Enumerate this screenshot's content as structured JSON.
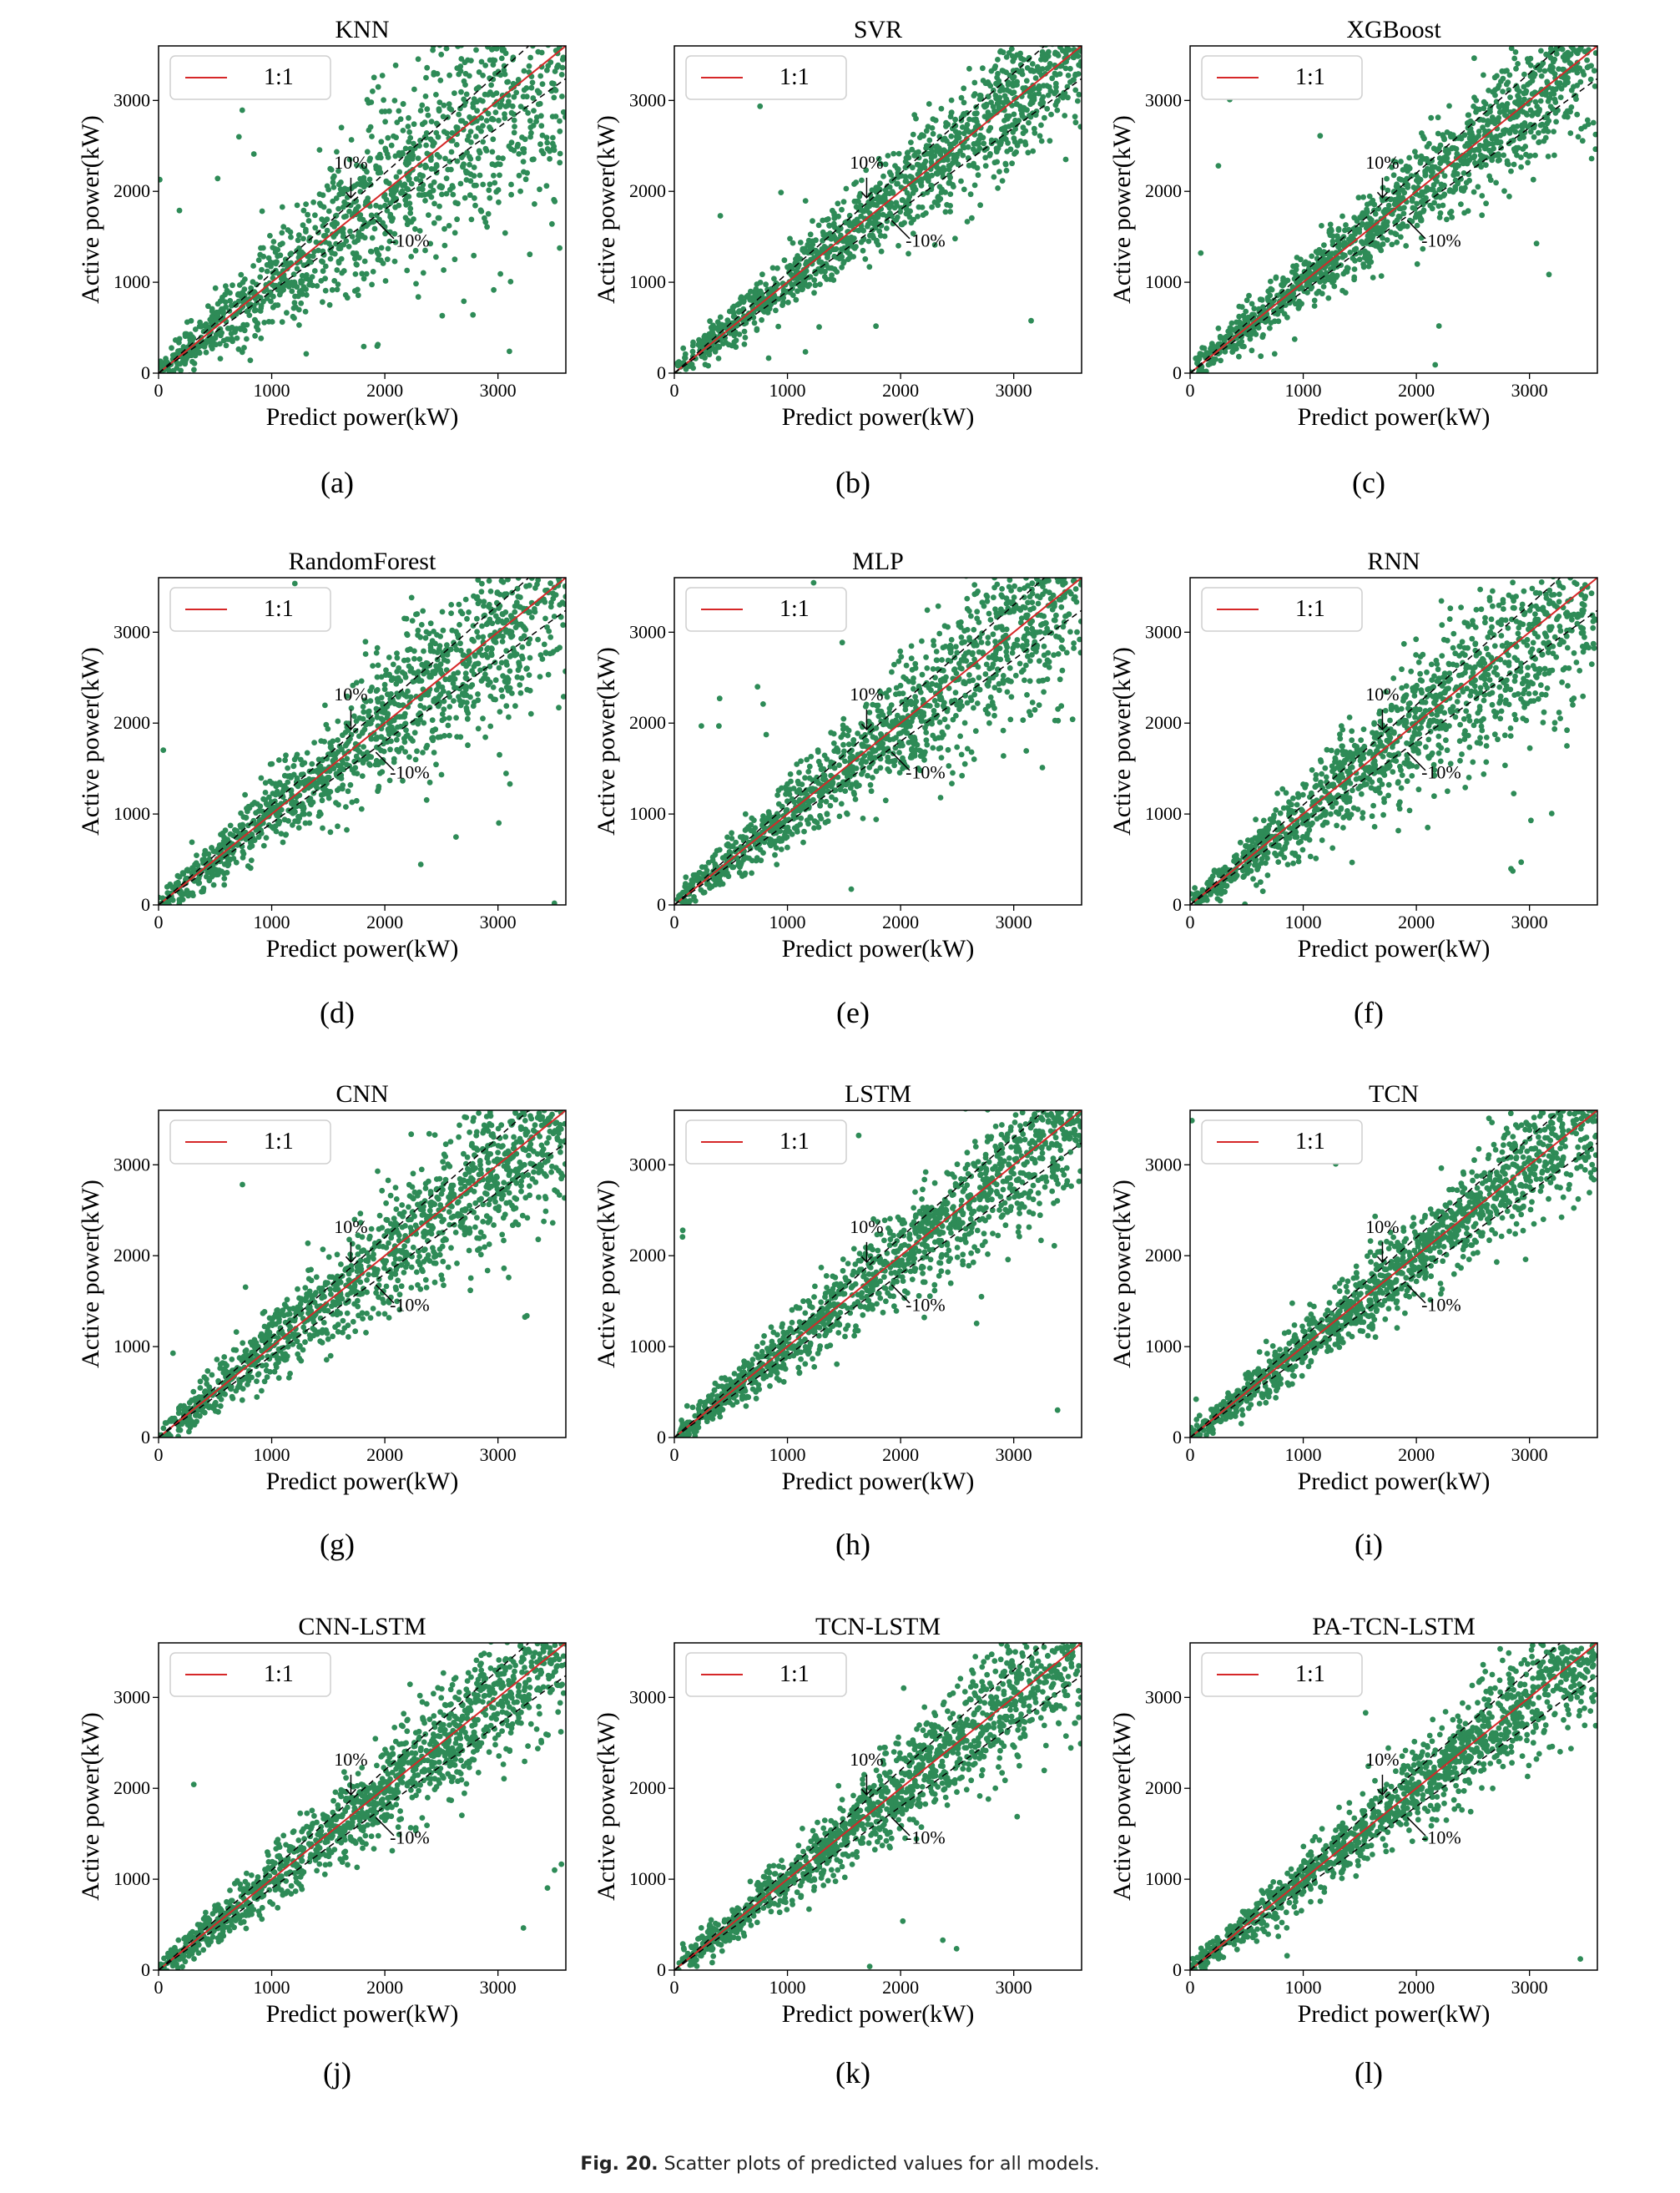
{
  "figure": {
    "caption_label": "Fig. 20.",
    "caption_text": "Scatter plots of predicted values for all models."
  },
  "colors": {
    "points": "#2e8b57",
    "line_1to1": "#d62728",
    "bounds": "#000000"
  },
  "chart_data": [
    {
      "type": "scatter",
      "title": "KNN",
      "sublabel": "(a)",
      "xlabel": "Predict power(kW)",
      "ylabel": "Active power(kW)",
      "xlim": [
        0,
        3600
      ],
      "ylim": [
        0,
        3600
      ],
      "xticks": [
        0,
        1000,
        2000,
        3000
      ],
      "yticks": [
        0,
        1000,
        2000,
        3000
      ],
      "legend": {
        "label": "1:1",
        "placement": "top-left"
      },
      "lines": [
        {
          "name": "1:1",
          "slope": 1.0
        },
        {
          "name": "+10%",
          "slope": 1.1
        },
        {
          "name": "-10%",
          "slope": 0.9
        }
      ],
      "annotations": [
        "10%",
        "-10%"
      ],
      "spread": 0.22,
      "outliers": 40
    },
    {
      "type": "scatter",
      "title": "SVR",
      "sublabel": "(b)",
      "xlabel": "Predict power(kW)",
      "ylabel": "Active power(kW)",
      "xlim": [
        0,
        3600
      ],
      "ylim": [
        0,
        3600
      ],
      "xticks": [
        0,
        1000,
        2000,
        3000
      ],
      "yticks": [
        0,
        1000,
        2000,
        3000
      ],
      "legend": {
        "label": "1:1",
        "placement": "top-left"
      },
      "lines": [
        {
          "name": "1:1",
          "slope": 1.0
        },
        {
          "name": "+10%",
          "slope": 1.1
        },
        {
          "name": "-10%",
          "slope": 0.9
        }
      ],
      "annotations": [
        "10%",
        "-10%"
      ],
      "spread": 0.1,
      "outliers": 10
    },
    {
      "type": "scatter",
      "title": "XGBoost",
      "sublabel": "(c)",
      "xlabel": "Predict power(kW)",
      "ylabel": "Active power(kW)",
      "xlim": [
        0,
        3600
      ],
      "ylim": [
        0,
        3600
      ],
      "xticks": [
        0,
        1000,
        2000,
        3000
      ],
      "yticks": [
        0,
        1000,
        2000,
        3000
      ],
      "legend": {
        "label": "1:1",
        "placement": "top-left"
      },
      "lines": [
        {
          "name": "1:1",
          "slope": 1.0
        },
        {
          "name": "+10%",
          "slope": 1.1
        },
        {
          "name": "-10%",
          "slope": 0.9
        }
      ],
      "annotations": [
        "10%",
        "-10%"
      ],
      "spread": 0.1,
      "outliers": 12
    },
    {
      "type": "scatter",
      "title": "RandomForest",
      "sublabel": "(d)",
      "xlabel": "Predict power(kW)",
      "ylabel": "Active power(kW)",
      "xlim": [
        0,
        3600
      ],
      "ylim": [
        0,
        3600
      ],
      "xticks": [
        0,
        1000,
        2000,
        3000
      ],
      "yticks": [
        0,
        1000,
        2000,
        3000
      ],
      "legend": {
        "label": "1:1",
        "placement": "top-left"
      },
      "lines": [
        {
          "name": "1:1",
          "slope": 1.0
        },
        {
          "name": "+10%",
          "slope": 1.1
        },
        {
          "name": "-10%",
          "slope": 0.9
        }
      ],
      "annotations": [
        "10%",
        "-10%"
      ],
      "spread": 0.14,
      "outliers": 15
    },
    {
      "type": "scatter",
      "title": "MLP",
      "sublabel": "(e)",
      "xlabel": "Predict power(kW)",
      "ylabel": "Active power(kW)",
      "xlim": [
        0,
        3600
      ],
      "ylim": [
        0,
        3600
      ],
      "xticks": [
        0,
        1000,
        2000,
        3000
      ],
      "yticks": [
        0,
        1000,
        2000,
        3000
      ],
      "legend": {
        "label": "1:1",
        "placement": "top-left"
      },
      "lines": [
        {
          "name": "1:1",
          "slope": 1.0
        },
        {
          "name": "+10%",
          "slope": 1.1
        },
        {
          "name": "-10%",
          "slope": 0.9
        }
      ],
      "annotations": [
        "10%",
        "-10%"
      ],
      "spread": 0.14,
      "outliers": 12
    },
    {
      "type": "scatter",
      "title": "RNN",
      "sublabel": "(f)",
      "xlabel": "Predict power(kW)",
      "ylabel": "Active power(kW)",
      "xlim": [
        0,
        3600
      ],
      "ylim": [
        0,
        3600
      ],
      "xticks": [
        0,
        1000,
        2000,
        3000
      ],
      "yticks": [
        0,
        1000,
        2000,
        3000
      ],
      "legend": {
        "label": "1:1",
        "placement": "top-left"
      },
      "lines": [
        {
          "name": "1:1",
          "slope": 1.0
        },
        {
          "name": "+10%",
          "slope": 1.1
        },
        {
          "name": "-10%",
          "slope": 0.9
        }
      ],
      "annotations": [
        "10%",
        "-10%"
      ],
      "spread": 0.16,
      "outliers": 15
    },
    {
      "type": "scatter",
      "title": "CNN",
      "sublabel": "(g)",
      "xlabel": "Predict power(kW)",
      "ylabel": "Active power(kW)",
      "xlim": [
        0,
        3600
      ],
      "ylim": [
        0,
        3600
      ],
      "xticks": [
        0,
        1000,
        2000,
        3000
      ],
      "yticks": [
        0,
        1000,
        2000,
        3000
      ],
      "legend": {
        "label": "1:1",
        "placement": "top-left"
      },
      "lines": [
        {
          "name": "1:1",
          "slope": 1.0
        },
        {
          "name": "+10%",
          "slope": 1.1
        },
        {
          "name": "-10%",
          "slope": 0.9
        }
      ],
      "annotations": [
        "10%",
        "-10%"
      ],
      "spread": 0.13,
      "outliers": 14
    },
    {
      "type": "scatter",
      "title": "LSTM",
      "sublabel": "(h)",
      "xlabel": "Predict power(kW)",
      "ylabel": "Active power(kW)",
      "xlim": [
        0,
        3600
      ],
      "ylim": [
        0,
        3600
      ],
      "xticks": [
        0,
        1000,
        2000,
        3000
      ],
      "yticks": [
        0,
        1000,
        2000,
        3000
      ],
      "legend": {
        "label": "1:1",
        "placement": "top-left"
      },
      "lines": [
        {
          "name": "1:1",
          "slope": 1.0
        },
        {
          "name": "+10%",
          "slope": 1.1
        },
        {
          "name": "-10%",
          "slope": 0.9
        }
      ],
      "annotations": [
        "10%",
        "-10%"
      ],
      "spread": 0.1,
      "outliers": 14
    },
    {
      "type": "scatter",
      "title": "TCN",
      "sublabel": "(i)",
      "xlabel": "Predict power(kW)",
      "ylabel": "Active power(kW)",
      "xlim": [
        0,
        3600
      ],
      "ylim": [
        0,
        3600
      ],
      "xticks": [
        0,
        1000,
        2000,
        3000
      ],
      "yticks": [
        0,
        1000,
        2000,
        3000
      ],
      "legend": {
        "label": "1:1",
        "placement": "top-left"
      },
      "lines": [
        {
          "name": "1:1",
          "slope": 1.0
        },
        {
          "name": "+10%",
          "slope": 1.1
        },
        {
          "name": "-10%",
          "slope": 0.9
        }
      ],
      "annotations": [
        "10%",
        "-10%"
      ],
      "spread": 0.09,
      "outliers": 10
    },
    {
      "type": "scatter",
      "title": "CNN-LSTM",
      "sublabel": "(j)",
      "xlabel": "Predict power(kW)",
      "ylabel": "Active power(kW)",
      "xlim": [
        0,
        3600
      ],
      "ylim": [
        0,
        3600
      ],
      "xticks": [
        0,
        1000,
        2000,
        3000
      ],
      "yticks": [
        0,
        1000,
        2000,
        3000
      ],
      "legend": {
        "label": "1:1",
        "placement": "top-left"
      },
      "lines": [
        {
          "name": "1:1",
          "slope": 1.0
        },
        {
          "name": "+10%",
          "slope": 1.1
        },
        {
          "name": "-10%",
          "slope": 0.9
        }
      ],
      "annotations": [
        "10%",
        "-10%"
      ],
      "spread": 0.1,
      "outliers": 10
    },
    {
      "type": "scatter",
      "title": "TCN-LSTM",
      "sublabel": "(k)",
      "xlabel": "Predict power(kW)",
      "ylabel": "Active power(kW)",
      "xlim": [
        0,
        3600
      ],
      "ylim": [
        0,
        3600
      ],
      "xticks": [
        0,
        1000,
        2000,
        3000
      ],
      "yticks": [
        0,
        1000,
        2000,
        3000
      ],
      "legend": {
        "label": "1:1",
        "placement": "top-left"
      },
      "lines": [
        {
          "name": "1:1",
          "slope": 1.0
        },
        {
          "name": "+10%",
          "slope": 1.1
        },
        {
          "name": "-10%",
          "slope": 0.9
        }
      ],
      "annotations": [
        "10%",
        "-10%"
      ],
      "spread": 0.1,
      "outliers": 12
    },
    {
      "type": "scatter",
      "title": "PA-TCN-LSTM",
      "sublabel": "(l)",
      "xlabel": "Predict power(kW)",
      "ylabel": "Active power(kW)",
      "xlim": [
        0,
        3600
      ],
      "ylim": [
        0,
        3600
      ],
      "xticks": [
        0,
        1000,
        2000,
        3000
      ],
      "yticks": [
        0,
        1000,
        2000,
        3000
      ],
      "legend": {
        "label": "1:1",
        "placement": "top-left"
      },
      "lines": [
        {
          "name": "1:1",
          "slope": 1.0
        },
        {
          "name": "+10%",
          "slope": 1.1
        },
        {
          "name": "-10%",
          "slope": 0.9
        }
      ],
      "annotations": [
        "10%",
        "-10%"
      ],
      "spread": 0.08,
      "outliers": 8
    }
  ]
}
